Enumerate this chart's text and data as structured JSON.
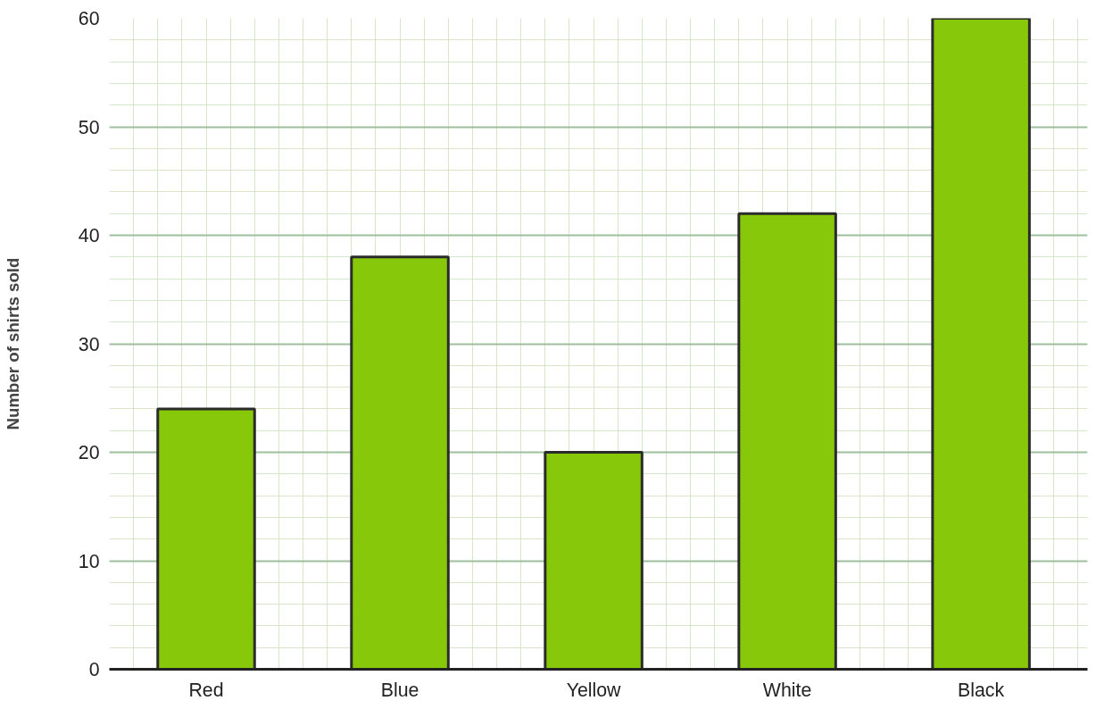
{
  "chart_data": {
    "type": "bar",
    "ylabel": "Number of shirts sold",
    "categories": [
      "Red",
      "Blue",
      "Yellow",
      "White",
      "Black"
    ],
    "values": [
      24,
      38,
      20,
      42,
      60
    ],
    "color": "#88c80a",
    "ylim": [
      0,
      60
    ],
    "yticks": [
      0,
      10,
      20,
      30,
      40,
      50,
      60
    ],
    "grid": true
  }
}
